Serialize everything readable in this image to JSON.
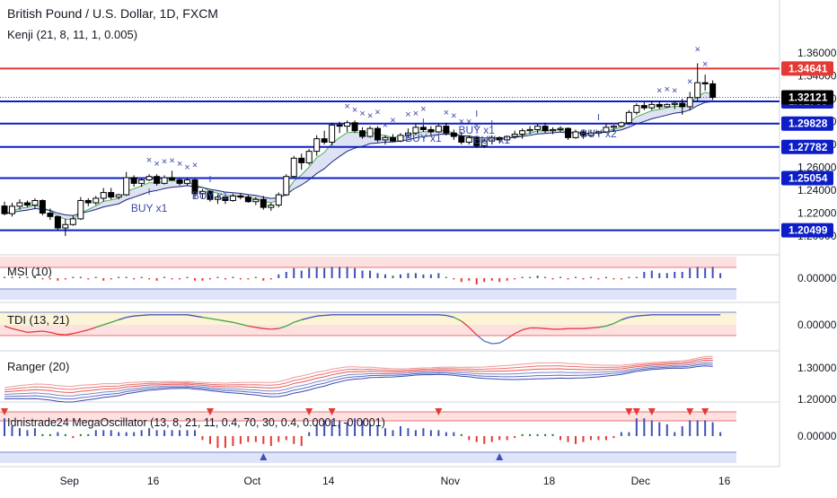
{
  "header": {
    "title": "British Pound / U.S. Dollar, 1D, FXCM"
  },
  "chart_data": [
    {
      "type": "candlestick",
      "indicator": "Kenji (21, 8, 11, 1, 0.005)",
      "ylim": [
        1.2,
        1.36
      ],
      "y_ticks": [
        "1.36000",
        "1.34000",
        "1.32000",
        "1.30000",
        "1.28000",
        "1.26000",
        "1.24000",
        "1.22000",
        "1.20000"
      ],
      "x_ticks": [
        "Sep",
        "16",
        "Oct",
        "14",
        "Nov",
        "18",
        "Dec",
        "16"
      ],
      "horizontal_lines": [
        {
          "value": 1.34641,
          "label": "1.34641",
          "color": "#e53935"
        },
        {
          "value": 1.31769,
          "label": "1.31769",
          "color": "#0d1ec8"
        },
        {
          "value": 1.29828,
          "label": "1.29828",
          "color": "#0d1ec8"
        },
        {
          "value": 1.27782,
          "label": "1.27782",
          "color": "#0d1ec8"
        },
        {
          "value": 1.25054,
          "label": "1.25054",
          "color": "#0d1ec8"
        },
        {
          "value": 1.20499,
          "label": "1.20499",
          "color": "#0d1ec8"
        }
      ],
      "last_price": {
        "value": 1.32121,
        "label": "1.32121"
      },
      "candles": [
        [
          1.2262,
          1.23,
          1.218,
          1.2195
        ],
        [
          1.2195,
          1.229,
          1.217,
          1.226
        ],
        [
          1.226,
          1.232,
          1.223,
          1.229
        ],
        [
          1.229,
          1.231,
          1.225,
          1.227
        ],
        [
          1.227,
          1.233,
          1.224,
          1.231
        ],
        [
          1.231,
          1.232,
          1.218,
          1.22
        ],
        [
          1.22,
          1.224,
          1.214,
          1.217
        ],
        [
          1.217,
          1.218,
          1.205,
          1.207
        ],
        [
          1.207,
          1.215,
          1.2,
          1.21
        ],
        [
          1.21,
          1.218,
          1.209,
          1.215
        ],
        [
          1.215,
          1.234,
          1.214,
          1.231
        ],
        [
          1.231,
          1.233,
          1.226,
          1.229
        ],
        [
          1.229,
          1.235,
          1.227,
          1.233
        ],
        [
          1.233,
          1.242,
          1.23,
          1.238
        ],
        [
          1.238,
          1.242,
          1.232,
          1.234
        ],
        [
          1.234,
          1.237,
          1.232,
          1.236
        ],
        [
          1.236,
          1.256,
          1.235,
          1.251
        ],
        [
          1.251,
          1.253,
          1.243,
          1.246
        ],
        [
          1.246,
          1.25,
          1.243,
          1.249
        ],
        [
          1.249,
          1.254,
          1.248,
          1.252
        ],
        [
          1.252,
          1.254,
          1.244,
          1.246
        ],
        [
          1.246,
          1.253,
          1.245,
          1.251
        ],
        [
          1.251,
          1.257,
          1.248,
          1.249
        ],
        [
          1.249,
          1.251,
          1.244,
          1.246
        ],
        [
          1.246,
          1.251,
          1.244,
          1.249
        ],
        [
          1.249,
          1.25,
          1.233,
          1.237
        ],
        [
          1.237,
          1.241,
          1.233,
          1.239
        ],
        [
          1.239,
          1.24,
          1.23,
          1.232
        ],
        [
          1.232,
          1.236,
          1.228,
          1.234
        ],
        [
          1.234,
          1.236,
          1.228,
          1.231
        ],
        [
          1.231,
          1.237,
          1.23,
          1.235
        ],
        [
          1.235,
          1.237,
          1.232,
          1.234
        ],
        [
          1.234,
          1.236,
          1.229,
          1.23
        ],
        [
          1.23,
          1.234,
          1.227,
          1.232
        ],
        [
          1.232,
          1.235,
          1.223,
          1.225
        ],
        [
          1.225,
          1.229,
          1.222,
          1.227
        ],
        [
          1.227,
          1.238,
          1.225,
          1.236
        ],
        [
          1.236,
          1.254,
          1.235,
          1.252
        ],
        [
          1.252,
          1.27,
          1.251,
          1.268
        ],
        [
          1.268,
          1.272,
          1.258,
          1.264
        ],
        [
          1.264,
          1.276,
          1.262,
          1.274
        ],
        [
          1.274,
          1.288,
          1.27,
          1.285
        ],
        [
          1.285,
          1.292,
          1.28,
          1.282
        ],
        [
          1.282,
          1.299,
          1.279,
          1.297
        ],
        [
          1.297,
          1.3,
          1.29,
          1.296
        ],
        [
          1.296,
          1.301,
          1.291,
          1.299
        ],
        [
          1.299,
          1.301,
          1.29,
          1.292
        ],
        [
          1.292,
          1.295,
          1.285,
          1.287
        ],
        [
          1.287,
          1.296,
          1.286,
          1.294
        ],
        [
          1.294,
          1.296,
          1.282,
          1.284
        ],
        [
          1.284,
          1.288,
          1.28,
          1.286
        ],
        [
          1.286,
          1.289,
          1.282,
          1.283
        ],
        [
          1.283,
          1.29,
          1.282,
          1.288
        ],
        [
          1.288,
          1.294,
          1.286,
          1.29
        ],
        [
          1.29,
          1.298,
          1.288,
          1.295
        ],
        [
          1.295,
          1.299,
          1.291,
          1.293
        ],
        [
          1.293,
          1.296,
          1.288,
          1.291
        ],
        [
          1.291,
          1.298,
          1.29,
          1.296
        ],
        [
          1.296,
          1.299,
          1.288,
          1.29
        ],
        [
          1.29,
          1.293,
          1.284,
          1.287
        ],
        [
          1.287,
          1.291,
          1.28,
          1.282
        ],
        [
          1.282,
          1.288,
          1.28,
          1.286
        ],
        [
          1.286,
          1.287,
          1.277,
          1.279
        ],
        [
          1.279,
          1.285,
          1.277,
          1.283
        ],
        [
          1.283,
          1.288,
          1.28,
          1.286
        ],
        [
          1.286,
          1.287,
          1.281,
          1.284
        ],
        [
          1.284,
          1.288,
          1.282,
          1.287
        ],
        [
          1.287,
          1.292,
          1.285,
          1.289
        ],
        [
          1.289,
          1.294,
          1.285,
          1.292
        ],
        [
          1.292,
          1.296,
          1.289,
          1.293
        ],
        [
          1.293,
          1.298,
          1.29,
          1.296
        ],
        [
          1.296,
          1.299,
          1.29,
          1.292
        ],
        [
          1.292,
          1.295,
          1.289,
          1.293
        ],
        [
          1.293,
          1.296,
          1.291,
          1.294
        ],
        [
          1.294,
          1.295,
          1.284,
          1.286
        ],
        [
          1.286,
          1.293,
          1.285,
          1.291
        ],
        [
          1.291,
          1.293,
          1.285,
          1.288
        ],
        [
          1.288,
          1.293,
          1.287,
          1.29
        ],
        [
          1.29,
          1.292,
          1.288,
          1.291
        ],
        [
          1.291,
          1.298,
          1.29,
          1.295
        ],
        [
          1.295,
          1.297,
          1.291,
          1.296
        ],
        [
          1.296,
          1.3,
          1.295,
          1.299
        ],
        [
          1.299,
          1.31,
          1.297,
          1.308
        ],
        [
          1.308,
          1.316,
          1.306,
          1.314
        ],
        [
          1.314,
          1.317,
          1.31,
          1.312
        ],
        [
          1.312,
          1.318,
          1.31,
          1.315
        ],
        [
          1.315,
          1.318,
          1.311,
          1.313
        ],
        [
          1.313,
          1.316,
          1.312,
          1.315
        ],
        [
          1.315,
          1.318,
          1.311,
          1.316
        ],
        [
          1.316,
          1.32,
          1.306,
          1.313
        ],
        [
          1.313,
          1.326,
          1.31,
          1.321
        ],
        [
          1.321,
          1.351,
          1.318,
          1.334
        ],
        [
          1.334,
          1.341,
          1.327,
          1.333
        ],
        [
          1.333,
          1.336,
          1.319,
          1.3212
        ]
      ],
      "signals": [
        {
          "label": "BUY x1"
        },
        {
          "label": "BUY x1"
        },
        {
          "label": "BUY x1"
        },
        {
          "label": "BUY x1"
        },
        {
          "label": "BUY x1"
        },
        {
          "label": "BUY x2"
        }
      ]
    },
    {
      "type": "bar",
      "title": "MSI (10)",
      "y_tick": "0.00000",
      "values": [
        0.1,
        0.1,
        0.1,
        0.1,
        0.2,
        -0.1,
        -0.1,
        -0.2,
        -0.1,
        0.1,
        0.1,
        -0.1,
        0.1,
        -0.2,
        -0.1,
        0.1,
        0.1,
        -0.1,
        0.1,
        -0.1,
        -0.2,
        0.1,
        -0.1,
        -0.1,
        0.1,
        -0.2,
        -0.2,
        -0.1,
        0.1,
        -0.1,
        0.1,
        -0.1,
        -0.1,
        0.1,
        -0.2,
        -0.1,
        0.3,
        0.5,
        0.8,
        0.6,
        0.8,
        0.9,
        0.8,
        0.9,
        0.9,
        0.9,
        0.8,
        0.6,
        0.6,
        0.4,
        0.3,
        0.2,
        0.3,
        0.4,
        0.4,
        0.3,
        0.3,
        0.4,
        0.1,
        -0.1,
        -0.3,
        -0.2,
        -0.5,
        -0.3,
        -0.2,
        -0.3,
        -0.2,
        -0.1,
        0.1,
        0.1,
        0.2,
        0.1,
        -0.1,
        0.1,
        -0.1,
        0.1,
        -0.1,
        0.1,
        -0.1,
        0.1,
        -0.1,
        -0.1,
        0.1,
        0.1,
        0.5,
        0.6,
        0.4,
        0.4,
        0.5,
        0.5,
        0.8,
        0.9,
        0.8,
        0.9,
        0.4
      ]
    },
    {
      "type": "line",
      "title": "TDI (13, 21)",
      "y_tick": "0.00000",
      "values": [
        -0.1,
        -0.3,
        -0.45,
        -0.6,
        -0.55,
        -0.5,
        -0.6,
        -0.75,
        -0.8,
        -0.7,
        -0.55,
        -0.4,
        -0.2,
        0.0,
        0.2,
        0.4,
        0.6,
        0.7,
        0.75,
        0.8,
        0.8,
        0.8,
        0.8,
        0.8,
        0.8,
        0.7,
        0.6,
        0.5,
        0.4,
        0.3,
        0.2,
        0.05,
        -0.1,
        -0.2,
        -0.3,
        -0.35,
        -0.3,
        -0.1,
        0.2,
        0.4,
        0.55,
        0.7,
        0.75,
        0.8,
        0.8,
        0.8,
        0.8,
        0.8,
        0.8,
        0.8,
        0.8,
        0.8,
        0.8,
        0.8,
        0.8,
        0.8,
        0.8,
        0.8,
        0.75,
        0.6,
        0.3,
        -0.2,
        -0.8,
        -1.3,
        -1.5,
        -1.45,
        -1.1,
        -0.7,
        -0.4,
        -0.25,
        -0.25,
        -0.3,
        -0.35,
        -0.35,
        -0.3,
        -0.3,
        -0.3,
        -0.25,
        -0.2,
        -0.1,
        0.1,
        0.4,
        0.6,
        0.7,
        0.75,
        0.8,
        0.8,
        0.8,
        0.8,
        0.8,
        0.8,
        0.8,
        0.8,
        0.8,
        0.8
      ]
    },
    {
      "type": "line",
      "title": "Ranger (20)",
      "y_ticks": [
        "1.30000",
        "1.20000"
      ]
    },
    {
      "type": "bar",
      "title": "Idnistrade24 MegaOscillator (13, 8, 21, 11, 0.4, 70, 30, 0.4, 0.0001, -0.0001)",
      "y_tick": "0.00000",
      "values": [
        0.9,
        0.5,
        0.4,
        0.3,
        0.4,
        0.1,
        0.1,
        0.2,
        0.1,
        -0.1,
        0.1,
        0.1,
        0.3,
        0.3,
        0.3,
        0.2,
        0.2,
        0.2,
        0.3,
        0.4,
        0.3,
        0.3,
        0.3,
        0.3,
        0.3,
        0.3,
        -0.2,
        -0.4,
        -0.6,
        -0.6,
        -0.5,
        -0.4,
        -0.3,
        -0.3,
        -0.4,
        -0.5,
        -0.3,
        -0.2,
        -0.4,
        -0.5,
        0.2,
        0.6,
        0.8,
        0.8,
        0.8,
        0.7,
        0.9,
        0.8,
        0.6,
        0.5,
        0.4,
        0.3,
        0.5,
        0.4,
        0.3,
        0.4,
        0.3,
        0.3,
        0.2,
        0.2,
        0.1,
        -0.2,
        -0.3,
        -0.4,
        -0.3,
        -0.2,
        -0.2,
        -0.1,
        0.1,
        0.1,
        0.1,
        0.1,
        0.1,
        -0.2,
        -0.3,
        -0.4,
        -0.3,
        -0.2,
        -0.2,
        -0.2,
        -0.1,
        0.2,
        0.2,
        0.9,
        0.9,
        0.8,
        0.7,
        0.6,
        0.2,
        0.5,
        0.8,
        0.8,
        0.8,
        0.7,
        0.2
      ],
      "markers_down": [
        0,
        27,
        40,
        43,
        57,
        82,
        83,
        85,
        90,
        92
      ],
      "markers_up": [
        34,
        65
      ]
    }
  ]
}
